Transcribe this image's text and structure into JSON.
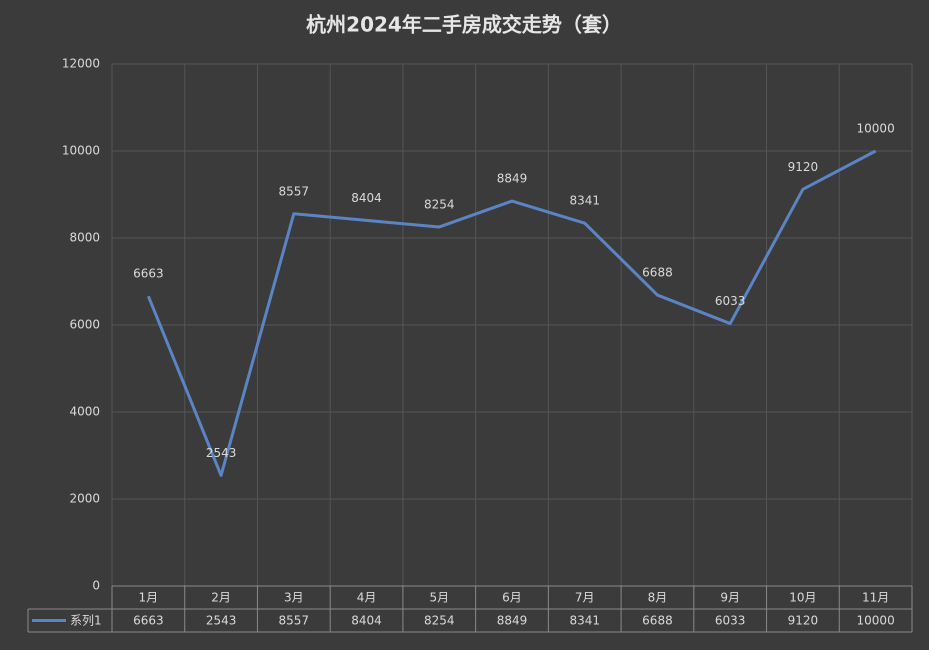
{
  "chart_data": {
    "type": "line",
    "title": "杭州2024年二手房成交走势（套）",
    "categories": [
      "1月",
      "2月",
      "3月",
      "4月",
      "5月",
      "6月",
      "7月",
      "8月",
      "9月",
      "10月",
      "11月"
    ],
    "series": [
      {
        "name": "系列1",
        "color": "#5b84c4",
        "values": [
          6663,
          2543,
          8557,
          8404,
          8254,
          8849,
          8341,
          6688,
          6033,
          9120,
          10000
        ]
      }
    ],
    "ylim": [
      0,
      12000
    ],
    "yticks": [
      0,
      2000,
      4000,
      6000,
      8000,
      10000,
      12000
    ],
    "grid": true,
    "data_labels": true,
    "data_table": true
  }
}
